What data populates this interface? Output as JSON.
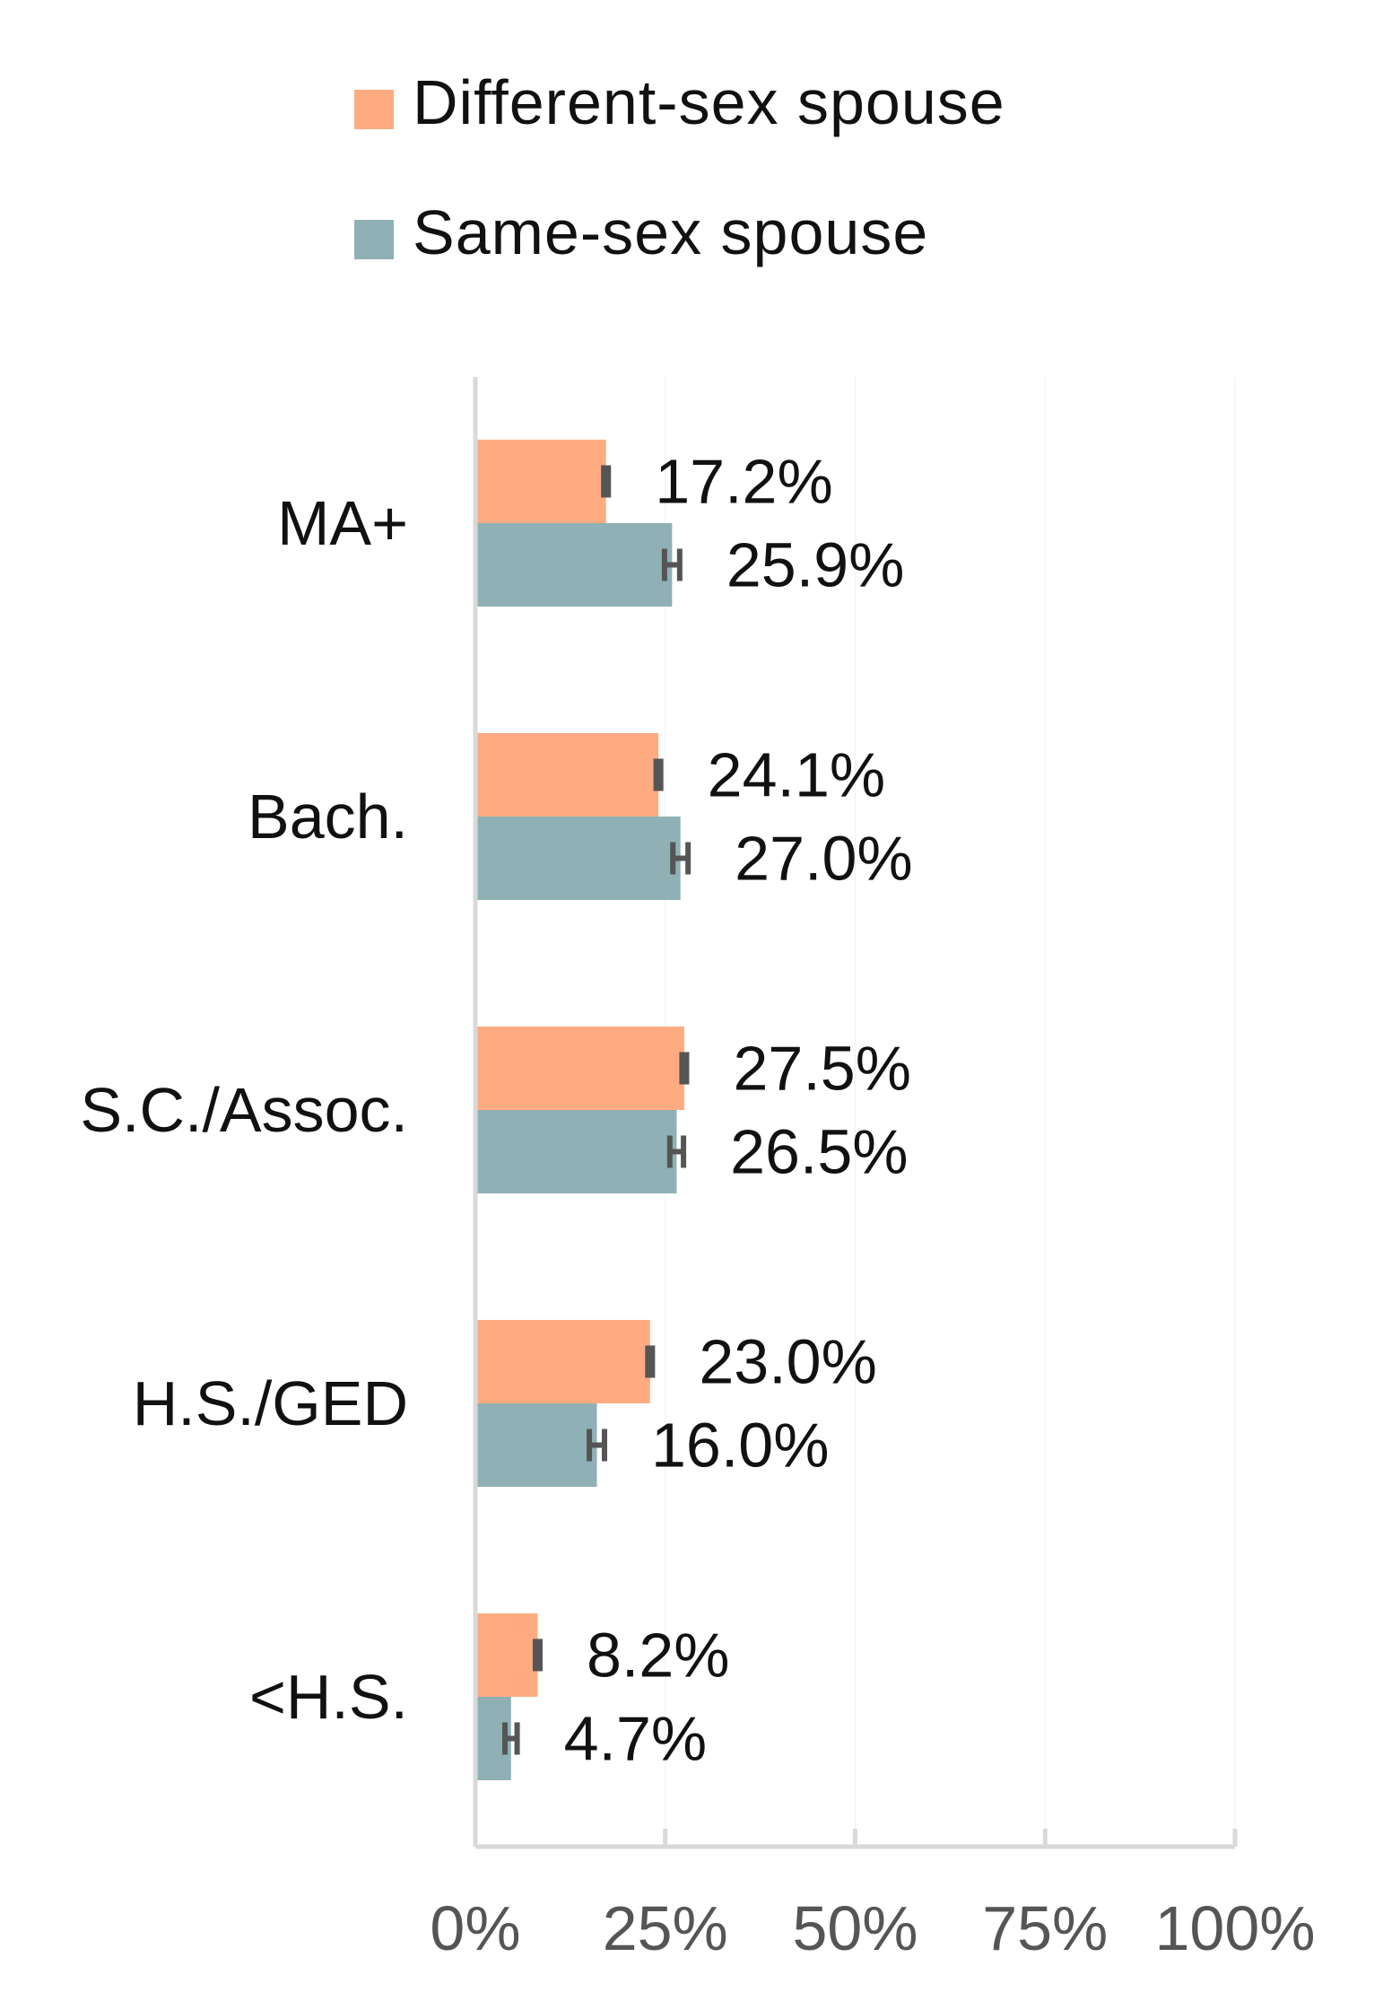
{
  "chart_data": {
    "type": "bar",
    "orientation": "horizontal",
    "categories": [
      "MA+",
      "Bach.",
      "S.C./Assoc.",
      "H.S./GED",
      "<H.S."
    ],
    "series": [
      {
        "name": "Different-sex spouse",
        "color": "#FFAB82",
        "values": [
          17.2,
          24.1,
          27.5,
          23.0,
          8.2
        ],
        "labels": [
          "17.2%",
          "24.1%",
          "27.5%",
          "23.0%",
          "8.2%"
        ],
        "error_margin": [
          0.3,
          0.3,
          0.3,
          0.3,
          0.3
        ]
      },
      {
        "name": "Same-sex spouse",
        "color": "#8FB1B5",
        "values": [
          25.9,
          27.0,
          26.5,
          16.0,
          4.7
        ],
        "labels": [
          "25.9%",
          "27.0%",
          "26.5%",
          "16.0%",
          "4.7%"
        ],
        "error_margin": [
          1.0,
          1.0,
          0.9,
          1.0,
          0.8
        ]
      }
    ],
    "xlim": [
      0,
      100
    ],
    "xticks": [
      0,
      25,
      50,
      75,
      100
    ],
    "xtick_labels": [
      "0%",
      "25%",
      "50%",
      "75%",
      "100%"
    ],
    "grid": false,
    "legend_position": "top"
  }
}
